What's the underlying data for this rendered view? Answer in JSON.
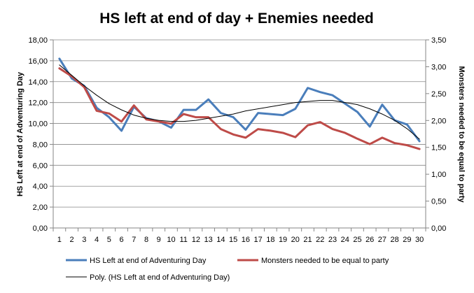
{
  "chart_data": {
    "type": "line",
    "title": "HS left at end of day + Enemies needed",
    "xlabel": "",
    "ylabel": "HS Left at end of Adventuring Day",
    "y2label": "Monsters needed to be equal to party",
    "categories": [
      "1",
      "2",
      "3",
      "4",
      "5",
      "6",
      "7",
      "8",
      "9",
      "10",
      "11",
      "12",
      "13",
      "14",
      "15",
      "16",
      "17",
      "18",
      "19",
      "20",
      "21",
      "22",
      "23",
      "24",
      "25",
      "26",
      "27",
      "28",
      "29",
      "30"
    ],
    "ylim": [
      0,
      18
    ],
    "y2lim": [
      0,
      3.5
    ],
    "yticks": [
      "0,00",
      "2,00",
      "4,00",
      "6,00",
      "8,00",
      "10,00",
      "12,00",
      "14,00",
      "16,00",
      "18,00"
    ],
    "y2ticks": [
      "0,00",
      "0,50",
      "1,00",
      "1,50",
      "2,00",
      "2,50",
      "3,00",
      "3,50"
    ],
    "grid": "horizontal",
    "legend_position": "bottom",
    "series": [
      {
        "name": "HS Left at end of Adventuring Day",
        "axis": "left",
        "color": "#4a7ebb",
        "values": [
          16.2,
          14.3,
          13.6,
          11.5,
          10.6,
          9.3,
          11.6,
          10.5,
          10.2,
          9.6,
          11.3,
          11.3,
          12.3,
          11.0,
          10.6,
          9.4,
          11.0,
          10.9,
          10.8,
          11.4,
          13.4,
          13.0,
          12.7,
          11.9,
          11.1,
          9.7,
          11.8,
          10.3,
          9.9,
          8.3
        ]
      },
      {
        "name": "Monsters needed to be equal to party",
        "axis": "right",
        "color": "#be4b48",
        "values": [
          2.97,
          2.82,
          2.62,
          2.18,
          2.13,
          1.98,
          2.28,
          2.02,
          1.98,
          1.94,
          2.12,
          2.06,
          2.06,
          1.84,
          1.74,
          1.68,
          1.84,
          1.81,
          1.77,
          1.69,
          1.91,
          1.97,
          1.84,
          1.77,
          1.66,
          1.56,
          1.68,
          1.58,
          1.54,
          1.47
        ]
      },
      {
        "name": "Poly. (HS Left at end of Adventuring Day)",
        "axis": "left",
        "color": "#000000",
        "trendline": "polynomial",
        "values": [
          15.6,
          14.6,
          13.6,
          12.7,
          11.9,
          11.3,
          10.8,
          10.5,
          10.3,
          10.2,
          10.2,
          10.3,
          10.5,
          10.7,
          10.9,
          11.2,
          11.4,
          11.6,
          11.8,
          12.0,
          12.1,
          12.2,
          12.2,
          12.0,
          11.8,
          11.4,
          10.9,
          10.3,
          9.5,
          8.5
        ]
      }
    ]
  }
}
